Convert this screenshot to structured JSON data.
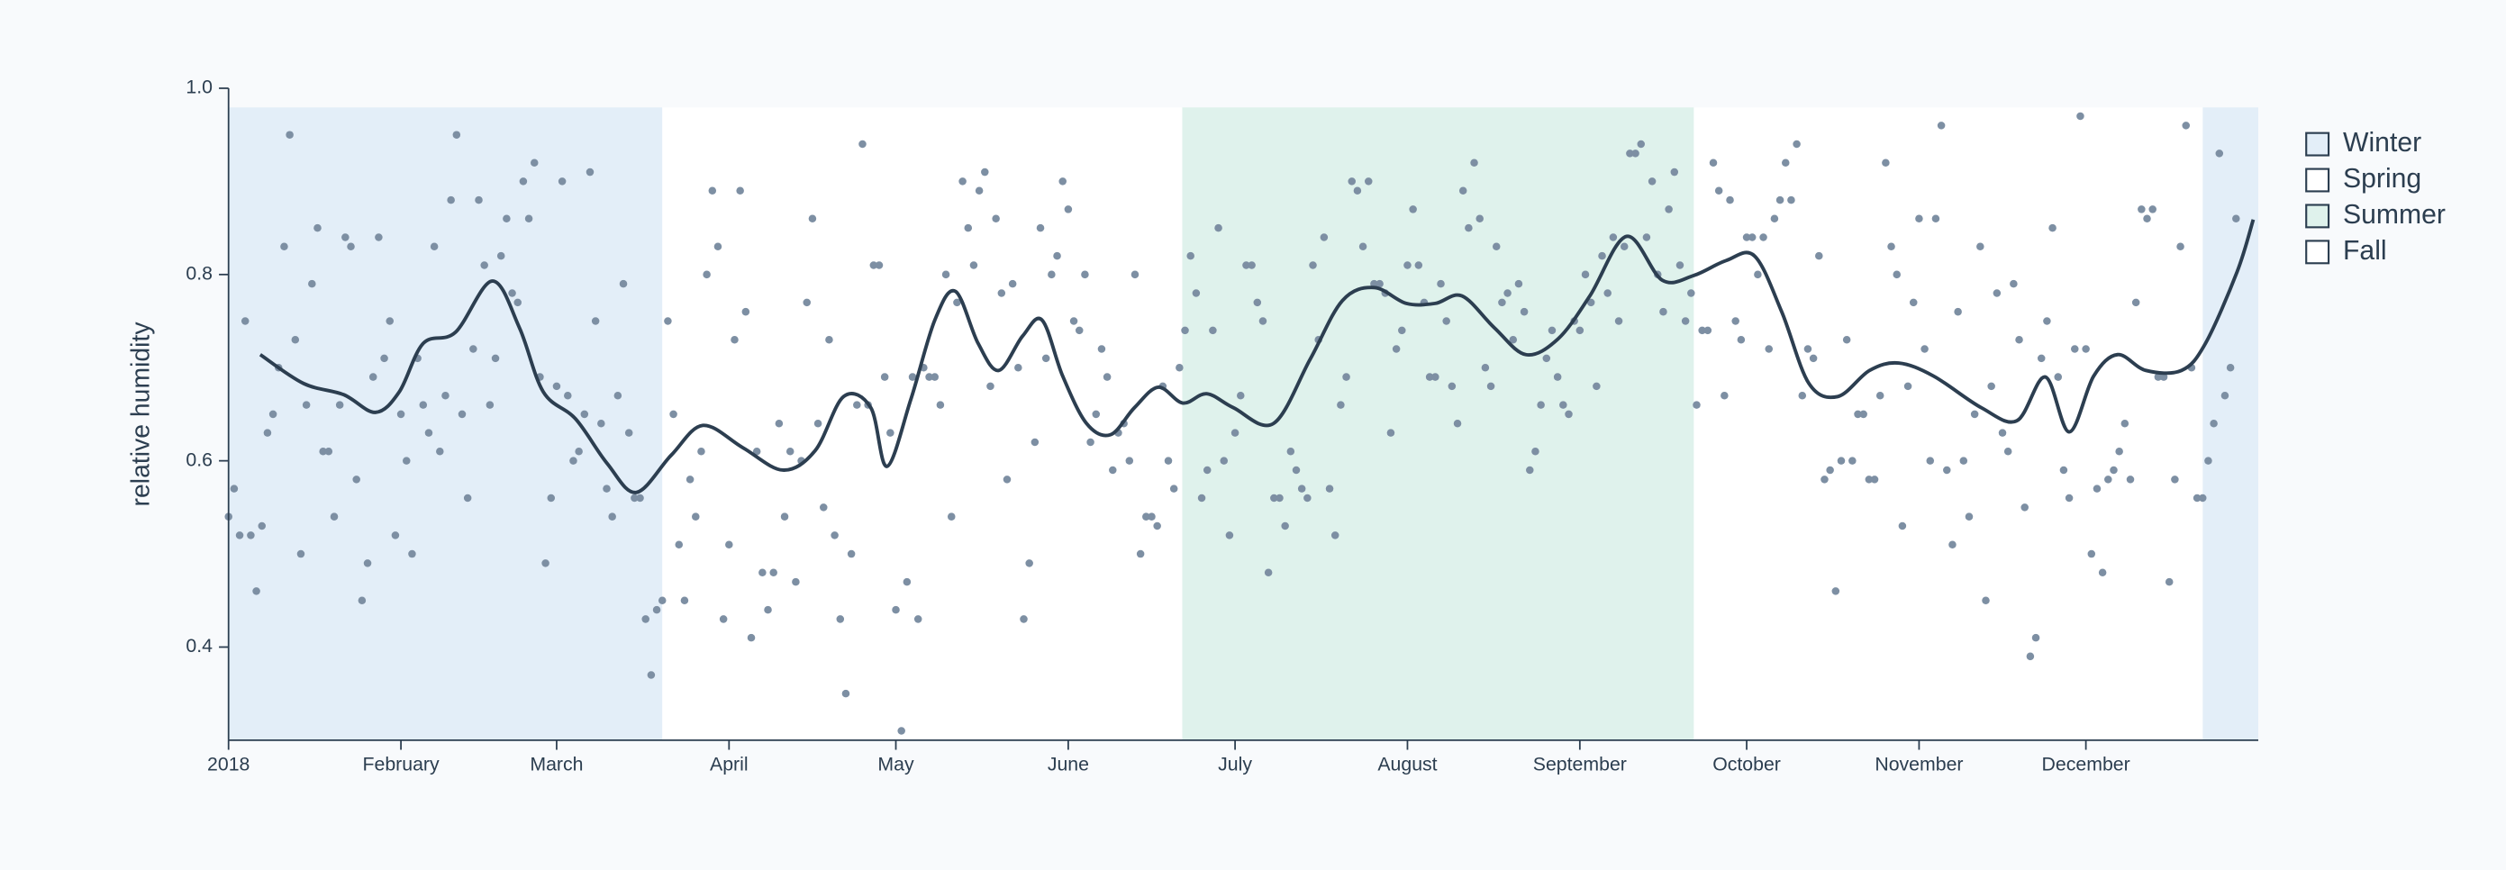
{
  "chart_data": {
    "type": "scatter",
    "ylabel": "relative humidity",
    "xlim": [
      0,
      365
    ],
    "xticks": [
      {
        "value": 0,
        "label": "2018"
      },
      {
        "value": 31,
        "label": "February"
      },
      {
        "value": 59,
        "label": "March"
      },
      {
        "value": 90,
        "label": "April"
      },
      {
        "value": 120,
        "label": "May"
      },
      {
        "value": 151,
        "label": "June"
      },
      {
        "value": 181,
        "label": "July"
      },
      {
        "value": 212,
        "label": "August"
      },
      {
        "value": 243,
        "label": "September"
      },
      {
        "value": 273,
        "label": "October"
      },
      {
        "value": 304,
        "label": "November"
      },
      {
        "value": 334,
        "label": "December"
      }
    ],
    "ylim": [
      0.3,
      1.0
    ],
    "yticks": [
      0.4,
      0.6,
      0.8,
      {
        "value": 1,
        "label": "1.0"
      }
    ],
    "seasons": [
      {
        "name": "Winter",
        "color": "#e3eef8",
        "spans": [
          [
            0,
            78
          ],
          [
            355,
            365
          ]
        ]
      },
      {
        "name": "Spring",
        "color": "#ffffff",
        "spans": [
          [
            78,
            171.5
          ]
        ]
      },
      {
        "name": "Summer",
        "color": "#dff2ec",
        "spans": [
          [
            171.5,
            263.5
          ]
        ]
      },
      {
        "name": "Fall",
        "color": "#ffffff",
        "spans": [
          [
            263.5,
            355
          ]
        ]
      }
    ],
    "points": {
      "color": "#7d8fa3",
      "x": [
        0,
        1,
        2,
        3,
        4,
        5,
        6,
        7,
        8,
        9,
        10,
        11,
        12,
        13,
        14,
        15,
        16,
        17,
        18,
        19,
        20,
        21,
        22,
        23,
        24,
        25,
        26,
        27,
        28,
        29,
        30,
        31,
        32,
        33,
        34,
        35,
        36,
        37,
        38,
        39,
        40,
        41,
        42,
        43,
        44,
        45,
        46,
        47,
        48,
        49,
        50,
        51,
        52,
        53,
        54,
        55,
        56,
        57,
        58,
        59,
        60,
        61,
        62,
        63,
        64,
        65,
        66,
        67,
        68,
        69,
        70,
        71,
        72,
        73,
        74,
        75,
        76,
        77,
        78,
        79,
        80,
        81,
        82,
        83,
        84,
        85,
        86,
        87,
        88,
        89,
        90,
        91,
        92,
        93,
        94,
        95,
        96,
        97,
        98,
        99,
        100,
        101,
        102,
        103,
        104,
        105,
        106,
        107,
        108,
        109,
        110,
        111,
        112,
        113,
        114,
        115,
        116,
        117,
        118,
        119,
        120,
        121,
        122,
        123,
        124,
        125,
        126,
        127,
        128,
        129,
        130,
        131,
        132,
        133,
        134,
        135,
        136,
        137,
        138,
        139,
        140,
        141,
        142,
        143,
        144,
        145,
        146,
        147,
        148,
        149,
        150,
        151,
        152,
        153,
        154,
        155,
        156,
        157,
        158,
        159,
        160,
        161,
        162,
        163,
        164,
        165,
        166,
        167,
        168,
        169,
        170,
        171,
        172,
        173,
        174,
        175,
        176,
        177,
        178,
        179,
        180,
        181,
        182,
        183,
        184,
        185,
        186,
        187,
        188,
        189,
        190,
        191,
        192,
        193,
        194,
        195,
        196,
        197,
        198,
        199,
        200,
        201,
        202,
        203,
        204,
        205,
        206,
        207,
        208,
        209,
        210,
        211,
        212,
        213,
        214,
        215,
        216,
        217,
        218,
        219,
        220,
        221,
        222,
        223,
        224,
        225,
        226,
        227,
        228,
        229,
        230,
        231,
        232,
        233,
        234,
        235,
        236,
        237,
        238,
        239,
        240,
        241,
        242,
        243,
        244,
        245,
        246,
        247,
        248,
        249,
        250,
        251,
        252,
        253,
        254,
        255,
        256,
        257,
        258,
        259,
        260,
        261,
        262,
        263,
        264,
        265,
        266,
        267,
        268,
        269,
        270,
        271,
        272,
        273,
        274,
        275,
        276,
        277,
        278,
        279,
        280,
        281,
        282,
        283,
        284,
        285,
        286,
        287,
        288,
        289,
        290,
        291,
        292,
        293,
        294,
        295,
        296,
        297,
        298,
        299,
        300,
        301,
        302,
        303,
        304,
        305,
        306,
        307,
        308,
        309,
        310,
        311,
        312,
        313,
        314,
        315,
        316,
        317,
        318,
        319,
        320,
        321,
        322,
        323,
        324,
        325,
        326,
        327,
        328,
        329,
        330,
        331,
        332,
        333,
        334,
        335,
        336,
        337,
        338,
        339,
        340,
        341,
        342,
        343,
        344,
        345,
        346,
        347,
        348,
        349,
        350,
        351,
        352,
        353,
        354,
        355,
        356,
        357,
        358,
        359,
        360,
        361
      ],
      "values": [
        0.54,
        0.57,
        0.52,
        0.75,
        0.52,
        0.46,
        0.53,
        0.63,
        0.65,
        0.7,
        0.83,
        0.95,
        0.73,
        0.5,
        0.66,
        0.79,
        0.85,
        0.61,
        0.61,
        0.54,
        0.66,
        0.84,
        0.83,
        0.58,
        0.45,
        0.49,
        0.69,
        0.84,
        0.71,
        0.75,
        0.52,
        0.65,
        0.6,
        0.5,
        0.71,
        0.66,
        0.63,
        0.83,
        0.61,
        0.67,
        0.88,
        0.95,
        0.65,
        0.56,
        0.72,
        0.88,
        0.81,
        0.66,
        0.71,
        0.82,
        0.86,
        0.78,
        0.77,
        0.9,
        0.86,
        0.92,
        0.69,
        0.49,
        0.56,
        0.68,
        0.9,
        0.67,
        0.6,
        0.61,
        0.65,
        0.91,
        0.75,
        0.64,
        0.57,
        0.54,
        0.67,
        0.79,
        0.63,
        0.56,
        0.56,
        0.43,
        0.37,
        0.44,
        0.45,
        0.75,
        0.65,
        0.51,
        0.45,
        0.58,
        0.54,
        0.61,
        0.8,
        0.89,
        0.83,
        0.43,
        0.51,
        0.73,
        0.89,
        0.76,
        0.41,
        0.61,
        0.48,
        0.44,
        0.48,
        0.64,
        0.54,
        0.61,
        0.47,
        0.6,
        0.77,
        0.86,
        0.64,
        0.55,
        0.73,
        0.52,
        0.43,
        0.35,
        0.5,
        0.66,
        0.94,
        0.66,
        0.81,
        0.81,
        0.69,
        0.63,
        0.44,
        0.31,
        0.47,
        0.69,
        0.43,
        0.7,
        0.69,
        0.69,
        0.66,
        0.8,
        0.54,
        0.77,
        0.9,
        0.85,
        0.81,
        0.89,
        0.91,
        0.68,
        0.86,
        0.78,
        0.58,
        0.79,
        0.7,
        0.43,
        0.49,
        0.62,
        0.85,
        0.71,
        0.8,
        0.82,
        0.9,
        0.87,
        0.75,
        0.74,
        0.8,
        0.62,
        0.65,
        0.72,
        0.69,
        0.59,
        0.63,
        0.64,
        0.6,
        0.8,
        0.5,
        0.54,
        0.54,
        0.53,
        0.68,
        0.6,
        0.57,
        0.7,
        0.74,
        0.82,
        0.78,
        0.56,
        0.59,
        0.74,
        0.85,
        0.6,
        0.52,
        0.63,
        0.67,
        0.81,
        0.81,
        0.77,
        0.75,
        0.48,
        0.56,
        0.56,
        0.53,
        0.61,
        0.59,
        0.57,
        0.56,
        0.81,
        0.73,
        0.84,
        0.57,
        0.52,
        0.66,
        0.69,
        0.9,
        0.89,
        0.83,
        0.9,
        0.79,
        0.79,
        0.78,
        0.63,
        0.72,
        0.74,
        0.81,
        0.87,
        0.81,
        0.77,
        0.69,
        0.69,
        0.79,
        0.75,
        0.68,
        0.64,
        0.89,
        0.85,
        0.92,
        0.86,
        0.7,
        0.68,
        0.83,
        0.77,
        0.78,
        0.73,
        0.79,
        0.76,
        0.59,
        0.61,
        0.66,
        0.71,
        0.74,
        0.69,
        0.66,
        0.65,
        0.75,
        0.74,
        0.8,
        0.77,
        0.68,
        0.82,
        0.78,
        0.84,
        0.75,
        0.83,
        0.93,
        0.93,
        0.94,
        0.84,
        0.9,
        0.8,
        0.76,
        0.87,
        0.91,
        0.81,
        0.75,
        0.78,
        0.66,
        0.74,
        0.74,
        0.92,
        0.89,
        0.67,
        0.88,
        0.75,
        0.73,
        0.84,
        0.84,
        0.8,
        0.84,
        0.72,
        0.86,
        0.88,
        0.92,
        0.88,
        0.94,
        0.67,
        0.72,
        0.71,
        0.82,
        0.58,
        0.59,
        0.46,
        0.6,
        0.73,
        0.6,
        0.65,
        0.65,
        0.58,
        0.58,
        0.67,
        0.92,
        0.83,
        0.8,
        0.53,
        0.68,
        0.77,
        0.86,
        0.72,
        0.6,
        0.86,
        0.96,
        0.59,
        0.51,
        0.76,
        0.6,
        0.54,
        0.65,
        0.83,
        0.45,
        0.68,
        0.78,
        0.63,
        0.61,
        0.79,
        0.73,
        0.55,
        0.39,
        0.41,
        0.71,
        0.75,
        0.85,
        0.69,
        0.59,
        0.56,
        0.72,
        0.97,
        0.72,
        0.5,
        0.57,
        0.48,
        0.58,
        0.59,
        0.61,
        0.64,
        0.58,
        0.77,
        0.87,
        0.86,
        0.87,
        0.69,
        0.69,
        0.47,
        0.58,
        0.83,
        0.96,
        0.7,
        0.56,
        0.56,
        0.6,
        0.64,
        0.93,
        0.67,
        0.7,
        0.86
      ]
    },
    "trend": {
      "color": "#2c3e50",
      "x": [
        5.7,
        13.5,
        20.7,
        26.4,
        30.7,
        35,
        40.8,
        47.4,
        52.3,
        56.6,
        62.4,
        68.1,
        73.3,
        79.6,
        85.3,
        92.5,
        99.7,
        105.5,
        110.6,
        115.5,
        118.4,
        122.7,
        127,
        130.7,
        134.8,
        138.5,
        142.8,
        146.3,
        150,
        154.3,
        158.6,
        162.9,
        167.2,
        171.6,
        175.9,
        180.7,
        187.9,
        194.5,
        200.3,
        206,
        211.8,
        217,
        221.8,
        227.6,
        233.3,
        239.1,
        244.8,
        251.4,
        257.8,
        263.5,
        269.3,
        274.4,
        279.3,
        284.2,
        289.4,
        295.1,
        300.3,
        306.6,
        315.2,
        321.6,
        326.7,
        331,
        335.4,
        339.7,
        344.8,
        351.2,
        355.5,
        361.2,
        364.1
      ],
      "values": [
        0.714,
        0.683,
        0.671,
        0.652,
        0.674,
        0.726,
        0.738,
        0.793,
        0.743,
        0.674,
        0.645,
        0.597,
        0.566,
        0.606,
        0.638,
        0.614,
        0.59,
        0.611,
        0.669,
        0.657,
        0.594,
        0.666,
        0.751,
        0.782,
        0.726,
        0.697,
        0.734,
        0.751,
        0.691,
        0.64,
        0.628,
        0.657,
        0.679,
        0.662,
        0.672,
        0.657,
        0.64,
        0.709,
        0.772,
        0.786,
        0.769,
        0.769,
        0.777,
        0.743,
        0.714,
        0.731,
        0.777,
        0.841,
        0.794,
        0.799,
        0.815,
        0.82,
        0.76,
        0.683,
        0.669,
        0.697,
        0.705,
        0.691,
        0.657,
        0.643,
        0.69,
        0.631,
        0.691,
        0.714,
        0.697,
        0.697,
        0.726,
        0.803,
        0.859
      ]
    }
  }
}
